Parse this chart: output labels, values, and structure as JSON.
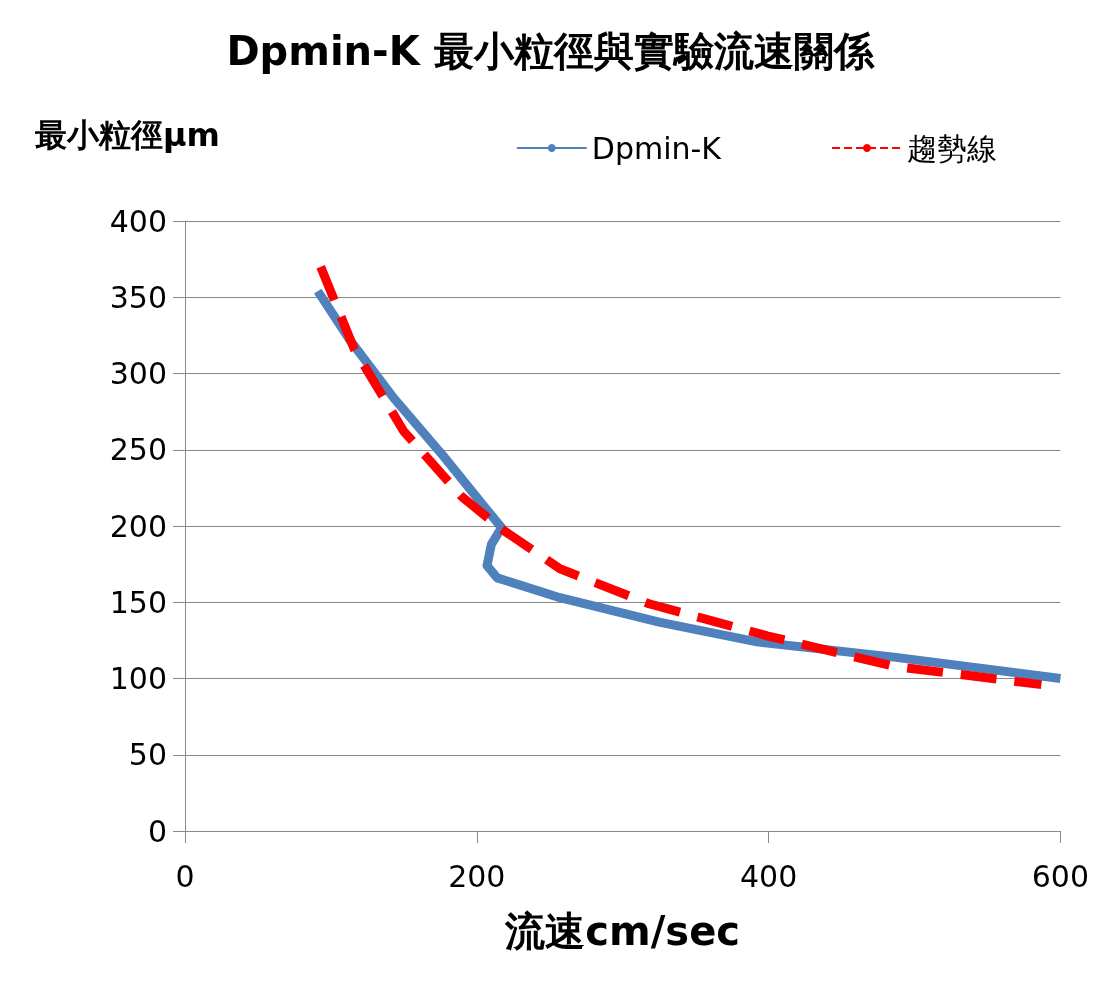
{
  "chart_data": {
    "type": "line",
    "title": "Dpmin-K 最小粒徑與實驗流速關係",
    "xlabel": "流速cm/sec",
    "ylabel": "最小粒徑μm",
    "xlim": [
      0,
      600
    ],
    "xticks": [
      0,
      200,
      400,
      600
    ],
    "ylim": [
      0,
      400
    ],
    "yticks": [
      0,
      50,
      100,
      150,
      200,
      250,
      300,
      350,
      400
    ],
    "grid": "y",
    "legend": "top right",
    "marker": "none",
    "series": [
      {
        "name": "Dpmin-K",
        "color": "#4f81bd",
        "line_style": "solid",
        "x": [
          91,
          113,
          143,
          177,
          204,
          217,
          210,
          207,
          214,
          257,
          325,
          392,
          486,
          600
        ],
        "values": [
          354,
          322,
          284,
          246,
          214,
          199,
          188,
          174,
          166,
          153,
          137,
          124,
          114,
          100
        ]
      },
      {
        "name": "趨勢線",
        "color": "#ff0000",
        "line_style": "dashed",
        "x": [
          93,
          116,
          150,
          190,
          217,
          257,
          318,
          399,
          486,
          587
        ],
        "values": [
          370,
          316,
          262,
          219,
          198,
          172,
          149,
          128,
          108,
          96
        ]
      }
    ]
  }
}
